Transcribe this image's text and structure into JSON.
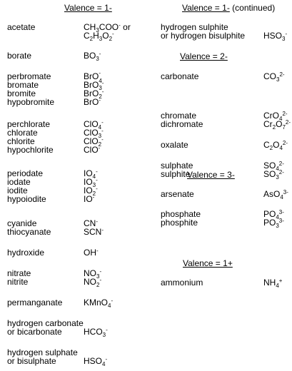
{
  "left": {
    "heading": "Valence = 1-",
    "groups": [
      {
        "rows": [
          {
            "name": "acetate",
            "formula": "CH3COO- or"
          },
          {
            "name": "",
            "formula": "C2H3O2-"
          }
        ]
      },
      {
        "rows": [
          {
            "name": "borate",
            "formula": "BO3-"
          }
        ]
      },
      {
        "rows": [
          {
            "name": "perbromate",
            "formula": "BrO4-"
          },
          {
            "name": "bromate",
            "formula": "BrO3-"
          },
          {
            "name": "bromite",
            "formula": "BrO2-"
          },
          {
            "name": "hypobromite",
            "formula": "BrO-"
          }
        ]
      },
      {
        "rows": [
          {
            "name": "perchlorate",
            "formula": "ClO4-"
          },
          {
            "name": "chlorate",
            "formula": "ClO3-"
          },
          {
            "name": "chlorite",
            "formula": "ClO2-"
          },
          {
            "name": "hypochlorite",
            "formula": "ClO-"
          }
        ]
      },
      {
        "rows": [
          {
            "name": "periodate",
            "formula": "IO4-"
          },
          {
            "name": "iodate",
            "formula": "IO3-"
          },
          {
            "name": "iodite",
            "formula": "IO2-"
          },
          {
            "name": "hypoiodite",
            "formula": "IO-"
          }
        ]
      },
      {
        "rows": [
          {
            "name": "cyanide",
            "formula": "CN-"
          },
          {
            "name": "thiocyanate",
            "formula": "SCN-"
          }
        ]
      },
      {
        "rows": [
          {
            "name": "hydroxide",
            "formula": "OH-"
          }
        ]
      },
      {
        "rows": [
          {
            "name": "nitrate",
            "formula": "NO3-"
          },
          {
            "name": "nitrite",
            "formula": "NO2-"
          }
        ]
      },
      {
        "rows": [
          {
            "name": "permanganate",
            "formula": "KMnO4-"
          }
        ]
      },
      {
        "rows": [
          {
            "name": "hydrogen carbonate",
            "formula": ""
          },
          {
            "name": "or bicarbonate",
            "formula": "HCO3-"
          }
        ]
      },
      {
        "rows": [
          {
            "name": "hydrogen sulphate",
            "formula": ""
          },
          {
            "name": "or bisulphate",
            "formula": "HSO4-"
          }
        ]
      }
    ]
  },
  "right": {
    "heading_main": "Valence = 1-",
    "heading_suffix": " (continued)",
    "sections": [
      {
        "heading": "",
        "groups": [
          {
            "rows": [
              {
                "name": "hydrogen sulphite",
                "formula": ""
              },
              {
                "name": "or hydrogen bisulphite",
                "formula": "HSO3-"
              }
            ]
          }
        ]
      },
      {
        "heading": "Valence = 2-",
        "groups": [
          {
            "rows": [
              {
                "name": "carbonate",
                "formula": "CO3 2-"
              }
            ]
          },
          {
            "rows": [
              {
                "name": "chromate",
                "formula": "CrO4 2-"
              },
              {
                "name": "dichromate",
                "formula": "Cr2O7 2-"
              }
            ]
          },
          {
            "rows": [
              {
                "name": "oxalate",
                "formula": "C2O4 2-"
              }
            ]
          },
          {
            "rows": [
              {
                "name": "sulphate",
                "formula": "SO4 2-"
              },
              {
                "name": "sulphite",
                "formula": "SO3 2-"
              }
            ]
          }
        ]
      },
      {
        "heading": "Valence = 3-",
        "groups": [
          {
            "rows": [
              {
                "name": "arsenate",
                "formula": "AsO4 3-"
              }
            ]
          },
          {
            "rows": [
              {
                "name": "phosphate",
                "formula": "PO4 3-"
              },
              {
                "name": "phosphite",
                "formula": "PO3 3-"
              }
            ]
          }
        ]
      },
      {
        "heading": "Valence = 1+",
        "groups": [
          {
            "rows": [
              {
                "name": "ammonium",
                "formula": "NH4 +"
              }
            ]
          }
        ]
      }
    ]
  }
}
